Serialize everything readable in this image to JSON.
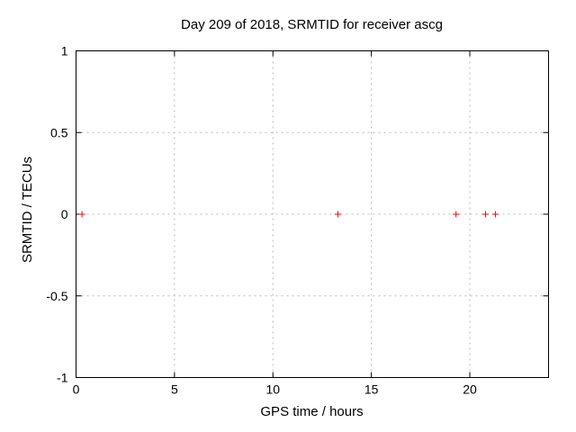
{
  "page": {
    "background": "#ffffff"
  },
  "chart_data": {
    "type": "scatter",
    "title": "Day 209 of 2018, SRMTID for receiver ascg",
    "xlabel": "GPS time / hours",
    "ylabel": "SRMTID / TECUs",
    "xlim": [
      0,
      24
    ],
    "ylim": [
      -1,
      1
    ],
    "xticks": [
      {
        "value": 0,
        "label": "0"
      },
      {
        "value": 5,
        "label": "5"
      },
      {
        "value": 10,
        "label": "10"
      },
      {
        "value": 15,
        "label": "15"
      },
      {
        "value": 20,
        "label": "20"
      }
    ],
    "yticks": [
      {
        "value": -1,
        "label": "-1"
      },
      {
        "value": -0.5,
        "label": "-0.5"
      },
      {
        "value": 0,
        "label": "0"
      },
      {
        "value": 0.5,
        "label": "0.5"
      },
      {
        "value": 1,
        "label": "1"
      }
    ],
    "grid": true,
    "grid_style": "dashed",
    "legend": "none",
    "marker": "plus",
    "colors": {
      "marker": "#ff0000",
      "grid": "#b9b9b9",
      "frame": "#000000",
      "text": "#000000"
    },
    "series": [
      {
        "points": [
          [
            0.3,
            0
          ],
          [
            13.3,
            0
          ],
          [
            19.3,
            0
          ],
          [
            20.8,
            0
          ],
          [
            21.3,
            0
          ]
        ]
      }
    ]
  }
}
